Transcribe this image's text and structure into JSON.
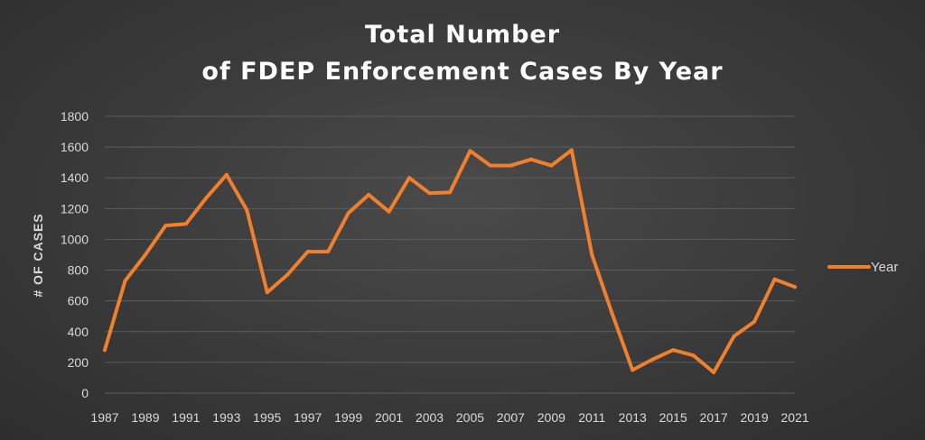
{
  "chart_data": {
    "type": "line",
    "title_line1": "Total Number",
    "title_line2": "of FDEP Enforcement Cases By Year",
    "xlabel": "",
    "ylabel": "# OF CASES",
    "ylim": [
      0,
      1800
    ],
    "y_ticks": [
      0,
      200,
      400,
      600,
      800,
      1000,
      1200,
      1400,
      1600,
      1800
    ],
    "x_tick_labels": [
      "1987",
      "1989",
      "1991",
      "1993",
      "1995",
      "1997",
      "1999",
      "2001",
      "2003",
      "2005",
      "2007",
      "2009",
      "2011",
      "2013",
      "2015",
      "2017",
      "2019",
      "2021"
    ],
    "grid": true,
    "legend_position": "right",
    "series": [
      {
        "name": "Year",
        "color": "#f07f2e",
        "x": [
          1987,
          1988,
          1989,
          1990,
          1991,
          1992,
          1993,
          1994,
          1995,
          1996,
          1997,
          1998,
          1999,
          2000,
          2001,
          2002,
          2003,
          2004,
          2005,
          2006,
          2007,
          2008,
          2009,
          2010,
          2011,
          2012,
          2013,
          2014,
          2015,
          2016,
          2017,
          2018,
          2019,
          2020,
          2021
        ],
        "values": [
          280,
          730,
          900,
          1090,
          1100,
          1270,
          1420,
          1190,
          655,
          770,
          920,
          920,
          1170,
          1290,
          1180,
          1400,
          1300,
          1305,
          1575,
          1480,
          1480,
          1520,
          1480,
          1580,
          900,
          515,
          150,
          220,
          280,
          245,
          135,
          370,
          465,
          740,
          690
        ]
      }
    ]
  }
}
